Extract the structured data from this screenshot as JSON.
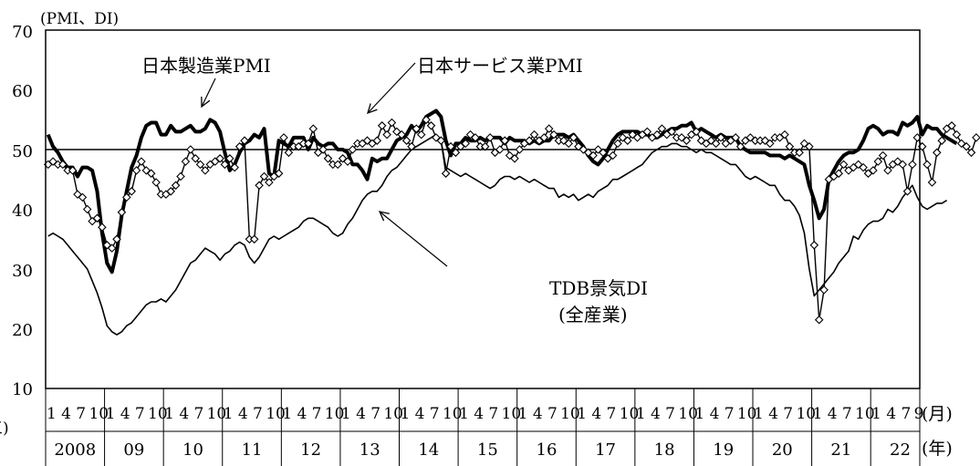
{
  "chart_data": {
    "type": "line",
    "unit_label": "(PMI、DI)",
    "y_ticks": [
      "70",
      "60",
      "50",
      "40",
      "30",
      "20",
      "10"
    ],
    "ylim": [
      10,
      70
    ],
    "reference_line": 50,
    "month_label": "(月)",
    "year_label": "(年)",
    "left_edge_fragment": "三)",
    "month_ticks": [
      "1",
      "4",
      "7",
      "10"
    ],
    "last_year_month_ticks": [
      "1",
      "4",
      "7",
      "9"
    ],
    "years": [
      "2008",
      "09",
      "10",
      "11",
      "12",
      "13",
      "14",
      "15",
      "16",
      "17",
      "18",
      "19",
      "20",
      "21",
      "22"
    ],
    "x_start": "2008-01",
    "x_end": "2022-09",
    "annotations": {
      "manufacturing": "日本製造業PMI",
      "services": "日本サービス業PMI",
      "tdb_line1": "TDB景気DI",
      "tdb_line2": "(全産業)"
    },
    "series": [
      {
        "name": "日本製造業PMI",
        "style": "thick",
        "values": [
          52.5,
          50.5,
          49.5,
          48.0,
          47.0,
          47.0,
          45.5,
          47.0,
          47.0,
          46.5,
          43.0,
          36.0,
          31.0,
          29.5,
          33.0,
          39.0,
          43.0,
          47.0,
          49.0,
          52.0,
          54.0,
          54.5,
          54.5,
          52.5,
          52.5,
          54.0,
          53.0,
          53.0,
          53.5,
          54.0,
          53.0,
          53.0,
          53.5,
          55.0,
          54.5,
          53.0,
          49.5,
          46.5,
          47.5,
          49.5,
          51.0,
          51.5,
          52.5,
          52.0,
          53.5,
          46.0,
          45.5,
          51.5,
          51.0,
          50.5,
          52.0,
          52.0,
          52.0,
          50.0,
          52.0,
          51.0,
          50.5,
          51.0,
          51.0,
          50.0,
          50.0,
          49.5,
          47.5,
          47.5,
          46.5,
          45.0,
          48.5,
          48.0,
          48.5,
          48.5,
          50.0,
          51.5,
          52.0,
          52.5,
          54.0,
          53.0,
          54.0,
          55.5,
          56.0,
          56.5,
          55.5,
          51.5,
          49.0,
          51.0,
          51.0,
          52.0,
          51.5,
          51.5,
          52.0,
          51.5,
          52.0,
          52.0,
          52.0,
          51.0,
          52.0,
          51.5,
          51.5,
          51.5,
          51.0,
          51.5,
          51.0,
          51.5,
          51.5,
          52.5,
          52.5,
          52.5,
          52.0,
          52.5,
          51.5,
          50.5,
          49.0,
          48.0,
          47.5,
          48.5,
          50.0,
          51.5,
          52.5,
          53.0,
          53.0,
          53.0,
          53.0,
          52.5,
          52.5,
          52.0,
          52.0,
          52.5,
          53.0,
          53.5,
          53.5,
          54.0,
          54.0,
          54.5,
          53.0,
          53.5,
          53.0,
          52.5,
          52.0,
          52.5,
          52.0,
          52.0,
          52.0,
          50.5,
          50.0,
          49.5,
          49.5,
          49.5,
          49.5,
          49.0,
          49.0,
          49.0,
          48.5,
          49.0,
          48.5,
          48.0,
          47.5,
          44.0,
          41.5,
          38.5,
          40.0,
          45.0,
          46.5,
          48.0,
          49.0,
          49.5,
          49.5,
          50.0,
          51.5,
          53.5,
          54.0,
          53.5,
          52.5,
          53.0,
          53.0,
          52.5,
          54.5,
          54.0,
          54.5,
          55.5,
          52.5,
          54.0,
          53.5,
          53.5,
          52.5,
          52.0,
          51.5,
          51.0
        ]
      },
      {
        "name": "日本サービス業PMI",
        "style": "diamond",
        "values": [
          47.5,
          48.0,
          47.5,
          47.5,
          46.5,
          46.5,
          42.5,
          42.0,
          40.0,
          38.0,
          38.5,
          37.0,
          34.0,
          33.5,
          35.0,
          39.5,
          42.0,
          43.0,
          46.5,
          48.0,
          46.5,
          46.0,
          44.5,
          42.5,
          42.5,
          43.0,
          44.0,
          45.5,
          48.0,
          50.0,
          48.5,
          47.5,
          46.5,
          47.5,
          48.0,
          48.5,
          47.5,
          48.5,
          47.0,
          50.5,
          51.5,
          35.0,
          35.0,
          44.0,
          45.5,
          44.5,
          45.5,
          46.0,
          52.0,
          49.5,
          50.5,
          50.5,
          51.0,
          51.0,
          53.5,
          49.5,
          50.0,
          48.5,
          47.5,
          47.5,
          48.5,
          48.0,
          50.0,
          51.0,
          51.0,
          51.5,
          51.0,
          51.5,
          54.0,
          52.5,
          54.5,
          53.0,
          52.5,
          51.5,
          50.5,
          53.5,
          52.5,
          55.0,
          54.0,
          52.0,
          51.5,
          46.0,
          50.5,
          49.5,
          50.5,
          51.0,
          52.5,
          52.0,
          50.5,
          50.5,
          52.0,
          49.5,
          50.0,
          51.5,
          49.0,
          48.5,
          50.0,
          51.0,
          51.5,
          52.5,
          51.5,
          52.0,
          53.5,
          52.5,
          51.5,
          51.5,
          51.0,
          52.0,
          50.5,
          50.0,
          49.5,
          49.0,
          50.0,
          49.5,
          48.5,
          49.0,
          51.0,
          52.0,
          51.5,
          52.5,
          52.0,
          52.5,
          53.0,
          52.0,
          52.5,
          53.5,
          52.5,
          53.0,
          52.0,
          52.0,
          51.5,
          52.5,
          53.0,
          51.5,
          51.0,
          51.5,
          51.0,
          52.0,
          51.0,
          51.5,
          52.0,
          50.5,
          51.5,
          52.0,
          51.5,
          51.5,
          51.5,
          51.0,
          52.0,
          52.0,
          52.5,
          50.5,
          49.5,
          49.5,
          51.0,
          50.5,
          34.0,
          21.5,
          26.5,
          45.0,
          45.5,
          46.0,
          47.5,
          46.5,
          47.0,
          47.5,
          47.0,
          46.0,
          46.5,
          48.0,
          49.0,
          46.5,
          47.5,
          48.0,
          47.5,
          43.0,
          47.5,
          52.0,
          50.5,
          47.5,
          44.5,
          49.5,
          51.5,
          53.5,
          54.0,
          52.5,
          51.0,
          50.5,
          49.5,
          52.0
        ]
      },
      {
        "name": "TDB景気DI(全産業)",
        "style": "thin",
        "values": [
          35.5,
          36.0,
          35.5,
          35.0,
          34.0,
          33.0,
          32.0,
          31.0,
          30.0,
          28.0,
          26.0,
          23.5,
          20.5,
          19.5,
          19.0,
          19.5,
          20.5,
          21.0,
          22.0,
          23.0,
          24.0,
          24.5,
          24.5,
          25.0,
          24.5,
          25.5,
          26.5,
          28.0,
          29.5,
          31.0,
          31.5,
          32.5,
          33.5,
          33.0,
          32.5,
          31.5,
          32.5,
          33.0,
          34.0,
          34.5,
          34.0,
          32.0,
          31.0,
          32.0,
          33.5,
          35.0,
          35.5,
          35.0,
          35.5,
          36.0,
          36.5,
          37.0,
          38.0,
          38.5,
          38.5,
          38.0,
          37.5,
          37.0,
          36.0,
          35.5,
          36.0,
          37.5,
          38.5,
          40.0,
          41.5,
          42.5,
          43.0,
          43.0,
          44.0,
          45.5,
          46.5,
          47.0,
          48.0,
          49.0,
          50.0,
          50.5,
          51.0,
          51.5,
          52.0,
          52.5,
          51.5,
          47.0,
          46.5,
          46.0,
          45.5,
          46.0,
          45.5,
          45.0,
          44.5,
          44.0,
          43.5,
          44.0,
          45.0,
          45.5,
          45.5,
          45.0,
          45.5,
          45.0,
          44.5,
          45.0,
          44.5,
          44.0,
          43.5,
          43.5,
          42.0,
          42.5,
          42.0,
          42.5,
          41.5,
          42.0,
          42.5,
          42.0,
          43.0,
          43.5,
          44.0,
          45.0,
          45.0,
          45.5,
          46.0,
          46.5,
          47.0,
          47.5,
          48.5,
          49.5,
          50.0,
          50.5,
          50.5,
          51.0,
          51.0,
          50.5,
          50.5,
          50.0,
          49.5,
          50.0,
          49.5,
          49.5,
          49.0,
          48.5,
          48.0,
          47.5,
          47.5,
          46.5,
          45.5,
          45.0,
          45.5,
          45.0,
          44.5,
          44.0,
          44.0,
          42.5,
          41.5,
          41.5,
          40.5,
          39.0,
          36.0,
          30.0,
          25.5,
          26.5,
          27.5,
          28.5,
          29.5,
          31.0,
          32.0,
          33.0,
          35.5,
          35.0,
          36.5,
          37.5,
          38.0,
          38.0,
          38.5,
          40.0,
          39.5,
          40.5,
          42.0,
          43.0,
          44.0,
          42.0,
          40.5,
          40.0,
          40.5,
          41.0,
          41.0,
          41.5
        ]
      }
    ]
  }
}
